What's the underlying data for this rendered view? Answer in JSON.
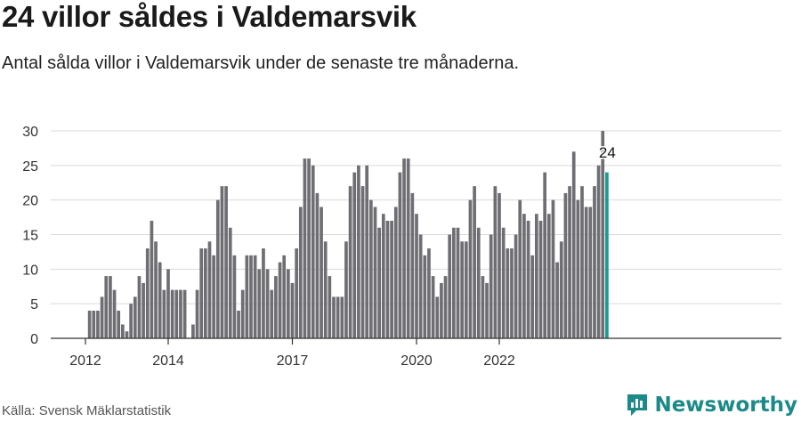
{
  "title": "24 villor såldes i Valdemarsvik",
  "subtitle": "Antal sålda villor i Valdemarsvik under de senaste tre månaderna.",
  "source": "Källa: Svensk Mäklarstatistik",
  "brand": {
    "name": "Newsworthy",
    "icon": "newsworthy-logo-icon"
  },
  "colors": {
    "bar": "#6f6e73",
    "highlight": "#1a9a8c",
    "grid": "#d9d9d9",
    "axis": "#333333",
    "brand": "#1d8a8a"
  },
  "chart_data": {
    "type": "bar",
    "title": "24 villor såldes i Valdemarsvik",
    "xlabel": "",
    "ylabel": "",
    "ylim": [
      0,
      30
    ],
    "yticks": [
      0,
      5,
      10,
      15,
      20,
      25,
      30
    ],
    "grid": true,
    "legend": "none",
    "xticks": [
      {
        "label": "2012",
        "index": 0
      },
      {
        "label": "2014",
        "index": 20
      },
      {
        "label": "2017",
        "index": 50
      },
      {
        "label": "2020",
        "index": 80
      },
      {
        "label": "2022",
        "index": 100
      }
    ],
    "values": [
      0,
      4,
      4,
      4,
      6,
      9,
      9,
      7,
      4,
      2,
      1,
      5,
      6,
      9,
      8,
      13,
      17,
      14,
      11,
      7,
      10,
      7,
      7,
      7,
      7,
      0,
      2,
      7,
      13,
      13,
      14,
      12,
      20,
      22,
      22,
      16,
      12,
      4,
      7,
      12,
      12,
      12,
      10,
      13,
      10,
      7,
      9,
      11,
      12,
      10,
      8,
      13,
      19,
      26,
      26,
      25,
      21,
      19,
      14,
      9,
      6,
      6,
      6,
      14,
      22,
      24,
      25,
      22,
      25,
      20,
      19,
      16,
      18,
      17,
      17,
      19,
      24,
      26,
      26,
      21,
      18,
      15,
      12,
      13,
      9,
      6,
      8,
      9,
      15,
      16,
      16,
      14,
      14,
      20,
      22,
      16,
      9,
      8,
      15,
      22,
      21,
      16,
      13,
      13,
      15,
      20,
      18,
      17,
      12,
      18,
      17,
      24,
      18,
      20,
      11,
      14,
      21,
      22,
      27,
      20,
      22,
      19,
      19,
      22,
      25,
      30,
      24
    ],
    "highlight_last": true,
    "annotations": [
      {
        "label": "24",
        "index": 126,
        "value": 24
      }
    ]
  }
}
